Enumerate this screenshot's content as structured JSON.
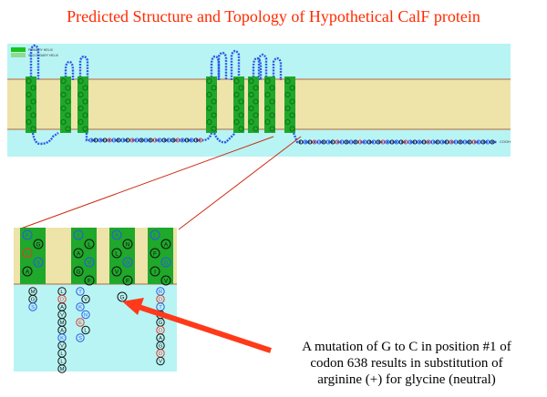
{
  "title": "Predicted Structure and Topology of Hypothetical CalF protein",
  "legend": {
    "entries": [
      "PRIMARY HELIX",
      "SECONDARY HELIX"
    ],
    "colors": [
      "#19c31c",
      "#8edc8e"
    ]
  },
  "colors": {
    "title": "#ff2a00",
    "cytoplasm": "#b8f4f4",
    "membrane": "#eee3a8",
    "membrane_edge": "#b06a40",
    "helix": "#1fa82a",
    "helix_dark": "#0c6d17",
    "residue_black": "#111111",
    "residue_blue": "#2a59e8",
    "residue_red": "#e23a2a",
    "arrow": "#ff3a1a",
    "zoom_line": "#cc2a10"
  },
  "overview": {
    "helix_count": 8,
    "label_end": "COOH"
  },
  "zoom": {
    "helix_letters": [
      [
        "F",
        "G",
        "L",
        "S",
        "A"
      ],
      [
        "I",
        "L",
        "A",
        "V",
        "G",
        "F"
      ],
      [
        "A",
        "N",
        "L",
        "G",
        "V",
        "F"
      ],
      [
        "L",
        "A",
        "F",
        "G",
        "I",
        "V"
      ]
    ],
    "loop_columns": [
      [
        "M",
        "G",
        "S"
      ],
      [
        "L",
        "D",
        "A",
        "V",
        "M",
        "A",
        "K",
        "V",
        "L",
        "L",
        "M"
      ],
      [
        "T",
        "V",
        "K",
        "N",
        "E",
        "L",
        "S"
      ],
      [
        "R",
        "D",
        "T",
        "A",
        "G",
        "D",
        "A",
        "G",
        "D",
        "V"
      ]
    ],
    "mutation_residue": "G"
  },
  "caption": {
    "lines": [
      "A mutation of G to C in position #1 of",
      "codon 638 results in substitution of",
      "arginine (+) for glycine (neutral)"
    ]
  }
}
